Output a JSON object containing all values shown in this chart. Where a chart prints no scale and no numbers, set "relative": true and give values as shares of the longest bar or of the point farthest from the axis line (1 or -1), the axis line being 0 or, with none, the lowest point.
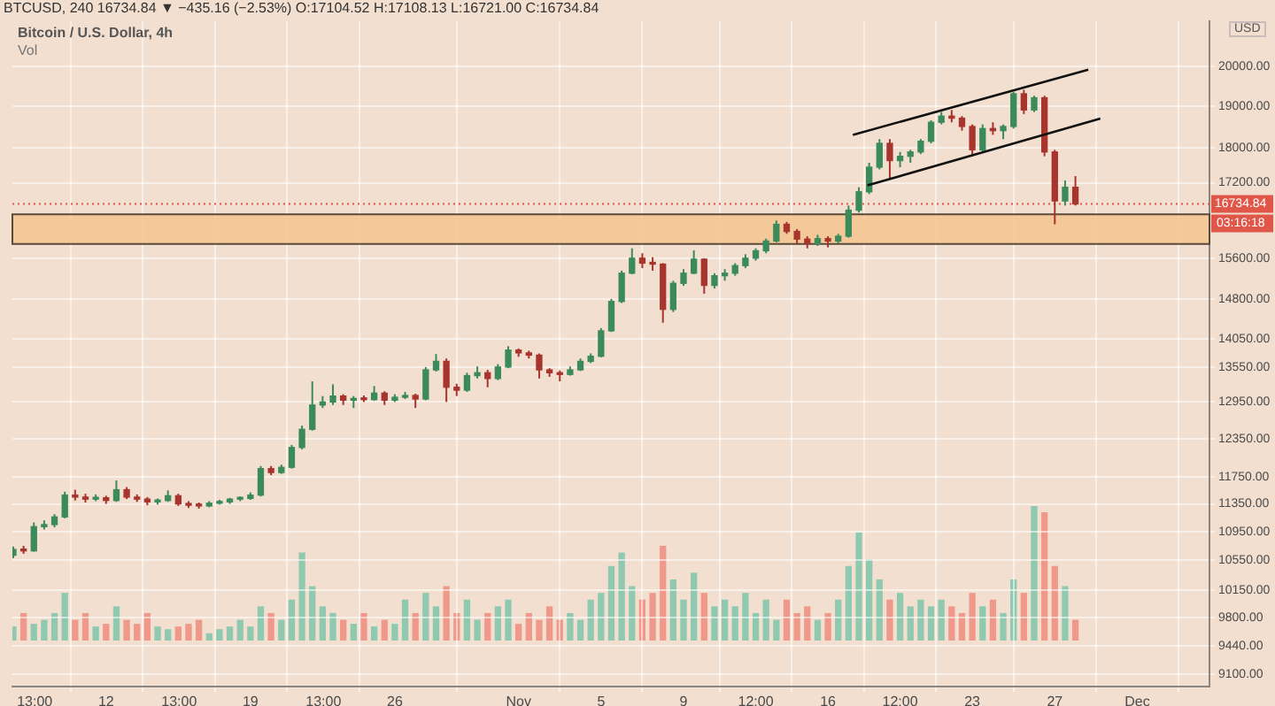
{
  "chart_data": [
    {
      "type": "candlestick",
      "title": "Bitcoin / U.S. Dollar, 4h",
      "subtitle": "BTCUSD, 240  16734.84 ▼ −435.16 (−2.53%)  O:17104.52  H:17108.13  L:16721.00  C:16734.84",
      "ylabel": "USD",
      "log": "y",
      "grid": true,
      "x": [
        "--10-07T12:00",
        "--10-08T00:00",
        "--10-08T12:00",
        "--10-09T00:00",
        "--10-09T12:00",
        "--10-10T00:00",
        "--10-10T12:00",
        "--10-11T00:00",
        "--10-11T12:00",
        "--10-12T00:00",
        "--10-12T12:00",
        "--10-13T00:00",
        "--10-13T12:00",
        "--10-14T00:00",
        "--10-14T12:00",
        "--10-15T00:00",
        "--10-15T12:00",
        "--10-16T00:00",
        "--10-16T12:00",
        "--10-17T00:00",
        "--10-17T12:00",
        "--10-18T00:00",
        "--10-18T12:00",
        "--10-19T00:00",
        "--10-19T12:00",
        "--10-20T00:00",
        "--10-20T12:00",
        "--10-21T00:00",
        "--10-21T12:00",
        "--10-22T00:00",
        "--10-22T12:00",
        "--10-23T00:00",
        "--10-23T12:00",
        "--10-24T00:00",
        "--10-24T12:00",
        "--10-25T00:00",
        "--10-25T12:00",
        "--10-26T00:00",
        "--10-26T12:00",
        "--10-27T00:00",
        "--10-27T12:00",
        "--10-28T00:00",
        "--10-28T12:00",
        "--10-29T00:00",
        "--10-29T12:00",
        "--10-30T00:00",
        "--10-30T12:00",
        "--10-31T00:00",
        "--10-31T12:00",
        "--11-01T00:00",
        "--11-01T12:00",
        "--11-02T00:00",
        "--11-02T12:00",
        "--11-03T00:00",
        "--11-03T12:00",
        "--11-04T00:00",
        "--11-04T12:00",
        "--11-05T00:00",
        "--11-05T12:00",
        "--11-06T00:00",
        "--11-06T12:00",
        "--11-07T00:00",
        "--11-07T12:00",
        "--11-08T00:00",
        "--11-08T12:00",
        "--11-09T00:00",
        "--11-09T12:00",
        "--11-10T00:00",
        "--11-10T12:00",
        "--11-11T00:00",
        "--11-11T12:00",
        "--11-12T00:00",
        "--11-12T12:00",
        "--11-13T00:00",
        "--11-13T12:00",
        "--11-14T00:00",
        "--11-14T12:00",
        "--11-15T00:00",
        "--11-15T12:00",
        "--11-16T00:00",
        "--11-16T12:00",
        "--11-17T00:00",
        "--11-17T12:00",
        "--11-18T00:00",
        "--11-18T12:00",
        "--11-19T00:00",
        "--11-19T12:00",
        "--11-20T00:00",
        "--11-20T12:00",
        "--11-21T00:00",
        "--11-21T12:00",
        "--11-22T00:00",
        "--11-22T12:00",
        "--11-23T00:00",
        "--11-23T12:00",
        "--11-24T00:00",
        "--11-24T12:00",
        "--11-25T00:00",
        "--11-25T12:00",
        "--11-26T00:00",
        "--11-26T12:00",
        "--11-27T00:00",
        "--11-27T12:00",
        "--11-28T00:00"
      ],
      "ohlc": [
        [
          10620,
          10740,
          10580,
          10700
        ],
        [
          10700,
          10750,
          10640,
          10680
        ],
        [
          10680,
          11080,
          10670,
          11020
        ],
        [
          11020,
          11110,
          10980,
          11050
        ],
        [
          11050,
          11200,
          11010,
          11160
        ],
        [
          11160,
          11530,
          11140,
          11480
        ],
        [
          11480,
          11560,
          11400,
          11450
        ],
        [
          11450,
          11500,
          11370,
          11420
        ],
        [
          11420,
          11490,
          11390,
          11440
        ],
        [
          11440,
          11470,
          11350,
          11400
        ],
        [
          11400,
          11700,
          11380,
          11560
        ],
        [
          11560,
          11600,
          11420,
          11450
        ],
        [
          11450,
          11490,
          11380,
          11420
        ],
        [
          11420,
          11450,
          11330,
          11380
        ],
        [
          11380,
          11430,
          11340,
          11400
        ],
        [
          11400,
          11550,
          11380,
          11470
        ],
        [
          11470,
          11500,
          11320,
          11350
        ],
        [
          11350,
          11390,
          11290,
          11330
        ],
        [
          11330,
          11370,
          11280,
          11320
        ],
        [
          11320,
          11390,
          11300,
          11360
        ],
        [
          11360,
          11410,
          11340,
          11380
        ],
        [
          11380,
          11440,
          11350,
          11420
        ],
        [
          11420,
          11460,
          11390,
          11430
        ],
        [
          11430,
          11520,
          11410,
          11480
        ],
        [
          11480,
          11920,
          11460,
          11880
        ],
        [
          11880,
          11920,
          11780,
          11820
        ],
        [
          11820,
          11940,
          11800,
          11900
        ],
        [
          11900,
          12250,
          11880,
          12210
        ],
        [
          12210,
          12560,
          12180,
          12500
        ],
        [
          12500,
          13300,
          12480,
          12900
        ],
        [
          12900,
          13050,
          12850,
          12950
        ],
        [
          12950,
          13250,
          12900,
          13050
        ],
        [
          13050,
          13080,
          12900,
          12980
        ],
        [
          12980,
          13050,
          12850,
          13000
        ],
        [
          13000,
          13060,
          12950,
          12990
        ],
        [
          12990,
          13220,
          12970,
          13100
        ],
        [
          13100,
          13130,
          12900,
          12980
        ],
        [
          12980,
          13080,
          12950,
          13030
        ],
        [
          13030,
          13120,
          13000,
          13060
        ],
        [
          13060,
          13090,
          12850,
          13000
        ],
        [
          13000,
          13550,
          12980,
          13500
        ],
        [
          13500,
          13780,
          13470,
          13650
        ],
        [
          13650,
          13700,
          12950,
          13200
        ],
        [
          13200,
          13260,
          13050,
          13150
        ],
        [
          13150,
          13450,
          13120,
          13400
        ],
        [
          13400,
          13560,
          13350,
          13450
        ],
        [
          13450,
          13500,
          13200,
          13350
        ],
        [
          13350,
          13600,
          13320,
          13550
        ],
        [
          13550,
          13920,
          13530,
          13850
        ],
        [
          13850,
          13880,
          13730,
          13800
        ],
        [
          13800,
          13840,
          13700,
          13760
        ],
        [
          13760,
          13790,
          13350,
          13500
        ],
        [
          13500,
          13530,
          13380,
          13450
        ],
        [
          13450,
          13490,
          13300,
          13420
        ],
        [
          13420,
          13560,
          13400,
          13500
        ],
        [
          13500,
          13700,
          13480,
          13650
        ],
        [
          13650,
          13790,
          13620,
          13740
        ],
        [
          13740,
          14250,
          13720,
          14200
        ],
        [
          14200,
          14800,
          14180,
          14750
        ],
        [
          14750,
          15350,
          14720,
          15300
        ],
        [
          15300,
          15800,
          15280,
          15600
        ],
        [
          15600,
          15700,
          15400,
          15500
        ],
        [
          15500,
          15620,
          15350,
          15480
        ],
        [
          15480,
          15500,
          14350,
          14600
        ],
        [
          14600,
          15150,
          14550,
          15100
        ],
        [
          15100,
          15380,
          15050,
          15300
        ],
        [
          15300,
          15760,
          15280,
          15580
        ],
        [
          15580,
          15600,
          14900,
          15060
        ],
        [
          15060,
          15300,
          15000,
          15250
        ],
        [
          15250,
          15380,
          15150,
          15300
        ],
        [
          15300,
          15500,
          15250,
          15450
        ],
        [
          15450,
          15680,
          15400,
          15600
        ],
        [
          15600,
          15800,
          15550,
          15750
        ],
        [
          15750,
          16000,
          15700,
          15950
        ],
        [
          15950,
          16380,
          15920,
          16300
        ],
        [
          16300,
          16350,
          16100,
          16150
        ],
        [
          16150,
          16200,
          15900,
          15990
        ],
        [
          15990,
          16050,
          15800,
          15900
        ],
        [
          15900,
          16080,
          15850,
          16000
        ],
        [
          16000,
          16050,
          15820,
          15950
        ],
        [
          15950,
          16100,
          15900,
          16050
        ],
        [
          16050,
          16700,
          16020,
          16600
        ],
        [
          16600,
          17100,
          16550,
          17000
        ],
        [
          17000,
          17650,
          16950,
          17550
        ],
        [
          17550,
          18200,
          17500,
          18100
        ],
        [
          18100,
          18200,
          17300,
          17700
        ],
        [
          17700,
          17900,
          17550,
          17800
        ],
        [
          17800,
          17950,
          17650,
          17900
        ],
        [
          17900,
          18200,
          17850,
          18150
        ],
        [
          18150,
          18650,
          18100,
          18600
        ],
        [
          18600,
          18850,
          18550,
          18750
        ],
        [
          18750,
          18900,
          18600,
          18700
        ],
        [
          18700,
          18750,
          18400,
          18500
        ],
        [
          18500,
          18550,
          17800,
          17950
        ],
        [
          17950,
          18550,
          17900,
          18450
        ],
        [
          18450,
          18600,
          18300,
          18400
        ],
        [
          18400,
          18550,
          18200,
          18500
        ],
        [
          18500,
          19350,
          18450,
          19300
        ],
        [
          19300,
          19400,
          18800,
          18900
        ],
        [
          18900,
          19250,
          18850,
          19200
        ],
        [
          19200,
          19250,
          17800,
          17900
        ],
        [
          17900,
          17950,
          16300,
          16800
        ],
        [
          16800,
          17250,
          16700,
          17100
        ],
        [
          17100,
          17350,
          16700,
          16734.84
        ]
      ],
      "colors": [
        "#3b8a5a",
        "#a8342e",
        "#3b8a5a",
        "#3b8a5a",
        "#3b8a5a",
        "#3b8a5a",
        "#a8342e",
        "#a8342e",
        "#3b8a5a",
        "#a8342e",
        "#3b8a5a",
        "#a8342e",
        "#a8342e",
        "#a8342e",
        "#3b8a5a",
        "#3b8a5a",
        "#a8342e",
        "#a8342e",
        "#a8342e",
        "#3b8a5a",
        "#3b8a5a",
        "#3b8a5a",
        "#3b8a5a",
        "#3b8a5a",
        "#3b8a5a",
        "#a8342e",
        "#3b8a5a",
        "#3b8a5a",
        "#3b8a5a",
        "#3b8a5a",
        "#3b8a5a",
        "#3b8a5a",
        "#a8342e",
        "#3b8a5a",
        "#a8342e",
        "#3b8a5a",
        "#a8342e",
        "#3b8a5a",
        "#3b8a5a",
        "#a8342e",
        "#3b8a5a",
        "#3b8a5a",
        "#a8342e",
        "#a8342e",
        "#3b8a5a",
        "#3b8a5a",
        "#a8342e",
        "#3b8a5a",
        "#3b8a5a",
        "#a8342e",
        "#a8342e",
        "#a8342e",
        "#a8342e",
        "#a8342e",
        "#3b8a5a",
        "#3b8a5a",
        "#3b8a5a",
        "#3b8a5a",
        "#3b8a5a",
        "#3b8a5a",
        "#3b8a5a",
        "#a8342e",
        "#a8342e",
        "#a8342e",
        "#3b8a5a",
        "#3b8a5a",
        "#3b8a5a",
        "#a8342e",
        "#3b8a5a",
        "#3b8a5a",
        "#3b8a5a",
        "#3b8a5a",
        "#3b8a5a",
        "#3b8a5a",
        "#3b8a5a",
        "#a8342e",
        "#a8342e",
        "#a8342e",
        "#3b8a5a",
        "#a8342e",
        "#3b8a5a",
        "#3b8a5a",
        "#3b8a5a",
        "#3b8a5a",
        "#3b8a5a",
        "#a8342e",
        "#3b8a5a",
        "#3b8a5a",
        "#3b8a5a",
        "#3b8a5a",
        "#3b8a5a",
        "#a8342e",
        "#a8342e",
        "#a8342e",
        "#3b8a5a",
        "#a8342e",
        "#3b8a5a",
        "#3b8a5a",
        "#a8342e",
        "#3b8a5a",
        "#a8342e",
        "#a8342e",
        "#3b8a5a",
        "#a8342e"
      ],
      "series": [
        {
          "type": "line",
          "color": "#111111",
          "x": [
            "--11-17T05:00",
            "--11-28T15:00"
          ],
          "values": [
            18300,
            19910
          ]
        },
        {
          "type": "line",
          "color": "#111111",
          "x": [
            "--11-17T22:00",
            "--11-29T05:00"
          ],
          "values": [
            17140,
            18690
          ]
        }
      ],
      "bands": [
        {
          "axis": "y",
          "from": 15890,
          "to": 16510,
          "color": "#f5c48e"
        }
      ],
      "ref_lines": [
        {
          "axis": "y",
          "value": 16734.84,
          "label": "16734.84",
          "color": "#e0574a",
          "line_style": "dotted"
        }
      ],
      "annotations": [
        "03:16:18"
      ],
      "xlim": [
        "--10-07T11:00",
        "--12-04T12:00"
      ],
      "xticks": [
        {
          "value": "--10-08T13:00",
          "label": "13:00"
        },
        {
          "value": "--10-12",
          "label": "12"
        },
        {
          "value": "--10-15T13:00",
          "label": "13:00"
        },
        {
          "value": "--10-19",
          "label": "19"
        },
        {
          "value": "--10-22T13:00",
          "label": "13:00"
        },
        {
          "value": "--10-26",
          "label": "26"
        },
        {
          "value": "--11-01",
          "label": "Nov"
        },
        {
          "value": "--11-05",
          "label": "5"
        },
        {
          "value": "--11-09",
          "label": "9"
        },
        {
          "value": "--11-12T12:00",
          "label": "12:00"
        },
        {
          "value": "--11-16",
          "label": "16"
        },
        {
          "value": "--11-19T12:00",
          "label": "12:00"
        },
        {
          "value": "--11-23",
          "label": "23"
        },
        {
          "value": "--11-27",
          "label": "27"
        },
        {
          "value": "--12-01",
          "label": "Dec"
        }
      ],
      "ylim": [
        8960,
        21200
      ],
      "yticks": [
        {
          "value": 9100,
          "label": "9100.00"
        },
        {
          "value": 9440,
          "label": "9440.00"
        },
        {
          "value": 9800,
          "label": "9800.00"
        },
        {
          "value": 10150,
          "label": "10150.00"
        },
        {
          "value": 10550,
          "label": "10550.00"
        },
        {
          "value": 10950,
          "label": "10950.00"
        },
        {
          "value": 11350,
          "label": "11350.00"
        },
        {
          "value": 11750,
          "label": "11750.00"
        },
        {
          "value": 12350,
          "label": "12350.00"
        },
        {
          "value": 12950,
          "label": "12950.00"
        },
        {
          "value": 13550,
          "label": "13550.00"
        },
        {
          "value": 14050,
          "label": "14050.00"
        },
        {
          "value": 14800,
          "label": "14800.00"
        },
        {
          "value": 15600,
          "label": "15600.00"
        },
        {
          "value": 17200,
          "label": "17200.00"
        },
        {
          "value": 18000,
          "label": "18000.00"
        },
        {
          "value": 19000,
          "label": "19000.00"
        },
        {
          "value": 20000,
          "label": "20000.00"
        }
      ]
    },
    {
      "type": "bar",
      "title": "Vol",
      "relative": true,
      "xlim": [
        "--10-07T11:00",
        "--12-04T12:00"
      ],
      "x": [
        "--10-07T12:00",
        "--10-08T00:00",
        "--10-08T12:00",
        "--10-09T00:00",
        "--10-09T12:00",
        "--10-10T00:00",
        "--10-10T12:00",
        "--10-11T00:00",
        "--10-11T12:00",
        "--10-12T00:00",
        "--10-12T12:00",
        "--10-13T00:00",
        "--10-13T12:00",
        "--10-14T00:00",
        "--10-14T12:00",
        "--10-15T00:00",
        "--10-15T12:00",
        "--10-16T00:00",
        "--10-16T12:00",
        "--10-17T00:00",
        "--10-17T12:00",
        "--10-18T00:00",
        "--10-18T12:00",
        "--10-19T00:00",
        "--10-19T12:00",
        "--10-20T00:00",
        "--10-20T12:00",
        "--10-21T00:00",
        "--10-21T12:00",
        "--10-22T00:00",
        "--10-22T12:00",
        "--10-23T00:00",
        "--10-23T12:00",
        "--10-24T00:00",
        "--10-24T12:00",
        "--10-25T00:00",
        "--10-25T12:00",
        "--10-26T00:00",
        "--10-26T12:00",
        "--10-27T00:00",
        "--10-27T12:00",
        "--10-28T00:00",
        "--10-28T12:00",
        "--10-29T00:00",
        "--10-29T12:00",
        "--10-30T00:00",
        "--10-30T12:00",
        "--10-31T00:00",
        "--10-31T12:00",
        "--11-01T00:00",
        "--11-01T12:00",
        "--11-02T00:00",
        "--11-02T12:00",
        "--11-03T00:00",
        "--11-03T12:00",
        "--11-04T00:00",
        "--11-04T12:00",
        "--11-05T00:00",
        "--11-05T12:00",
        "--11-06T00:00",
        "--11-06T12:00",
        "--11-07T00:00",
        "--11-07T12:00",
        "--11-08T00:00",
        "--11-08T12:00",
        "--11-09T00:00",
        "--11-09T12:00",
        "--11-10T00:00",
        "--11-10T12:00",
        "--11-11T00:00",
        "--11-11T12:00",
        "--11-12T00:00",
        "--11-12T12:00",
        "--11-13T00:00",
        "--11-13T12:00",
        "--11-14T00:00",
        "--11-14T12:00",
        "--11-15T00:00",
        "--11-15T12:00",
        "--11-16T00:00",
        "--11-16T12:00",
        "--11-17T00:00",
        "--11-17T12:00",
        "--11-18T00:00",
        "--11-18T12:00",
        "--11-19T00:00",
        "--11-19T12:00",
        "--11-20T00:00",
        "--11-20T12:00",
        "--11-21T00:00",
        "--11-21T12:00",
        "--11-22T00:00",
        "--11-22T12:00",
        "--11-23T00:00",
        "--11-23T12:00",
        "--11-24T00:00",
        "--11-24T12:00",
        "--11-25T00:00",
        "--11-25T12:00",
        "--11-26T00:00",
        "--11-26T12:00",
        "--11-27T00:00",
        "--11-27T12:00",
        "--11-28T00:00"
      ],
      "values": [
        0.1,
        0.2,
        0.12,
        0.15,
        0.2,
        0.35,
        0.15,
        0.2,
        0.1,
        0.12,
        0.25,
        0.15,
        0.12,
        0.2,
        0.1,
        0.08,
        0.1,
        0.12,
        0.15,
        0.05,
        0.08,
        0.1,
        0.15,
        0.1,
        0.25,
        0.2,
        0.15,
        0.3,
        0.65,
        0.4,
        0.25,
        0.2,
        0.15,
        0.12,
        0.2,
        0.1,
        0.15,
        0.12,
        0.3,
        0.2,
        0.35,
        0.25,
        0.4,
        0.2,
        0.3,
        0.15,
        0.2,
        0.25,
        0.3,
        0.12,
        0.2,
        0.15,
        0.25,
        0.15,
        0.2,
        0.15,
        0.3,
        0.35,
        0.55,
        0.65,
        0.4,
        0.3,
        0.35,
        0.7,
        0.45,
        0.3,
        0.5,
        0.35,
        0.25,
        0.3,
        0.25,
        0.35,
        0.2,
        0.3,
        0.15,
        0.3,
        0.2,
        0.25,
        0.15,
        0.2,
        0.3,
        0.55,
        0.8,
        0.6,
        0.45,
        0.3,
        0.35,
        0.25,
        0.3,
        0.25,
        0.3,
        0.25,
        0.2,
        0.35,
        0.25,
        0.3,
        0.2,
        0.45,
        0.35,
        1,
        0.95,
        0.55,
        0.4,
        0.15
      ],
      "colors": [
        "#8fc9b0",
        "#f0998b",
        "#8fc9b0",
        "#8fc9b0",
        "#8fc9b0",
        "#8fc9b0",
        "#f0998b",
        "#f0998b",
        "#8fc9b0",
        "#f0998b",
        "#8fc9b0",
        "#f0998b",
        "#f0998b",
        "#f0998b",
        "#8fc9b0",
        "#8fc9b0",
        "#f0998b",
        "#f0998b",
        "#f0998b",
        "#8fc9b0",
        "#8fc9b0",
        "#8fc9b0",
        "#8fc9b0",
        "#8fc9b0",
        "#8fc9b0",
        "#f0998b",
        "#8fc9b0",
        "#8fc9b0",
        "#8fc9b0",
        "#8fc9b0",
        "#8fc9b0",
        "#8fc9b0",
        "#f0998b",
        "#8fc9b0",
        "#f0998b",
        "#8fc9b0",
        "#f0998b",
        "#8fc9b0",
        "#8fc9b0",
        "#f0998b",
        "#8fc9b0",
        "#8fc9b0",
        "#f0998b",
        "#f0998b",
        "#8fc9b0",
        "#8fc9b0",
        "#f0998b",
        "#8fc9b0",
        "#8fc9b0",
        "#f0998b",
        "#f0998b",
        "#f0998b",
        "#f0998b",
        "#f0998b",
        "#8fc9b0",
        "#8fc9b0",
        "#8fc9b0",
        "#8fc9b0",
        "#8fc9b0",
        "#8fc9b0",
        "#8fc9b0",
        "#f0998b",
        "#f0998b",
        "#f0998b",
        "#8fc9b0",
        "#8fc9b0",
        "#8fc9b0",
        "#f0998b",
        "#8fc9b0",
        "#8fc9b0",
        "#8fc9b0",
        "#8fc9b0",
        "#8fc9b0",
        "#8fc9b0",
        "#8fc9b0",
        "#f0998b",
        "#f0998b",
        "#f0998b",
        "#8fc9b0",
        "#f0998b",
        "#8fc9b0",
        "#8fc9b0",
        "#8fc9b0",
        "#8fc9b0",
        "#8fc9b0",
        "#f0998b",
        "#8fc9b0",
        "#8fc9b0",
        "#8fc9b0",
        "#8fc9b0",
        "#8fc9b0",
        "#f0998b",
        "#f0998b",
        "#f0998b",
        "#8fc9b0",
        "#f0998b",
        "#8fc9b0",
        "#8fc9b0",
        "#f0998b",
        "#8fc9b0",
        "#f0998b",
        "#f0998b",
        "#8fc9b0",
        "#f0998b"
      ]
    }
  ]
}
